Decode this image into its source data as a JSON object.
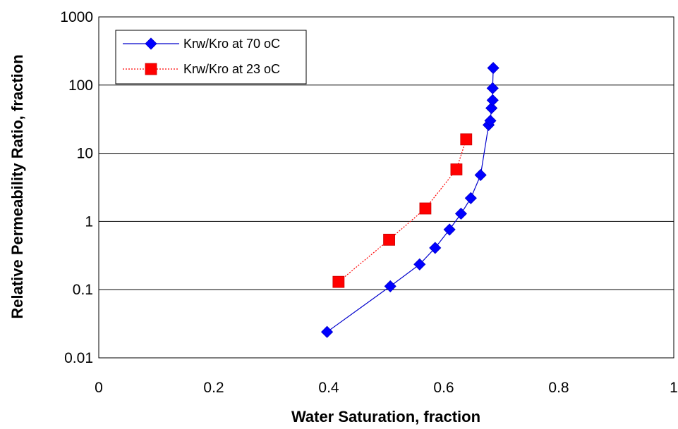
{
  "chart_data": {
    "type": "scatter",
    "xlabel": "Water Saturation, fraction",
    "ylabel": "Relative Permeability Ratio, fraction",
    "xlim": [
      0,
      1
    ],
    "ylim": [
      0.01,
      1000
    ],
    "yscale": "log",
    "x_ticks": [
      "0",
      "0.2",
      "0.4",
      "0.6",
      "0.8",
      "1"
    ],
    "y_ticks": [
      "0.01",
      "0.1",
      "1",
      "10",
      "100",
      "1000"
    ],
    "grid": "horizontal",
    "legend_position": "top-left",
    "series": [
      {
        "name": "Krw/Kro at 70 oC",
        "color": "#0000cc",
        "marker": "diamond",
        "line": "solid",
        "points": [
          [
            0.397,
            0.024
          ],
          [
            0.507,
            0.112
          ],
          [
            0.558,
            0.235
          ],
          [
            0.585,
            0.41
          ],
          [
            0.61,
            0.76
          ],
          [
            0.63,
            1.3
          ],
          [
            0.647,
            2.2
          ],
          [
            0.664,
            4.8
          ],
          [
            0.678,
            26
          ],
          [
            0.681,
            30
          ],
          [
            0.683,
            46
          ],
          [
            0.685,
            60
          ],
          [
            0.685,
            90
          ],
          [
            0.686,
            178
          ]
        ]
      },
      {
        "name": "Krw/Kro at 23 oC",
        "color": "#ff0000",
        "marker": "square",
        "line": "dotted",
        "points": [
          [
            0.417,
            0.13
          ],
          [
            0.505,
            0.54
          ],
          [
            0.568,
            1.55
          ],
          [
            0.622,
            5.8
          ],
          [
            0.639,
            16
          ]
        ]
      }
    ]
  }
}
